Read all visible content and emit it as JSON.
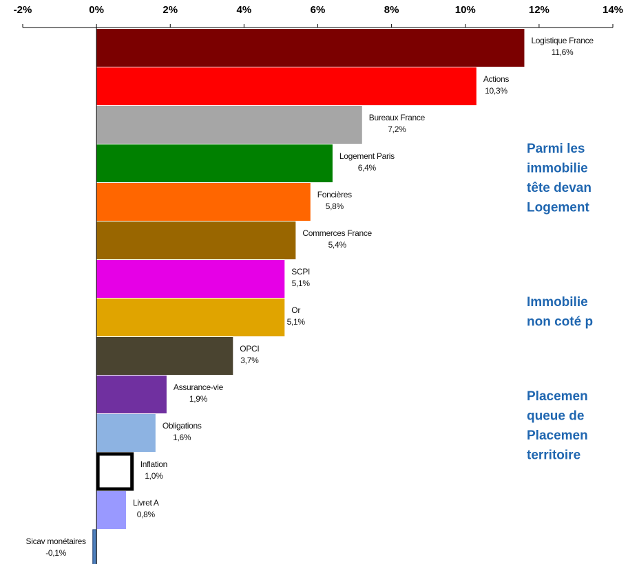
{
  "chart_data": {
    "type": "barh",
    "categories": [
      "Logistique France",
      "Actions",
      "Bureaux France",
      "Logement Paris",
      "Foncières",
      "Commerces France",
      "SCPI",
      "Or",
      "OPCI",
      "Assurance-vie",
      "Obligations",
      "Inflation",
      "Livret A",
      "Sicav monétaires"
    ],
    "values": [
      11.6,
      10.3,
      7.2,
      6.4,
      5.8,
      5.4,
      5.1,
      5.1,
      3.7,
      1.9,
      1.6,
      1.0,
      0.8,
      -0.1
    ],
    "value_labels": [
      "11,6%",
      "10,3%",
      "7,2%",
      "6,4%",
      "5,8%",
      "5,4%",
      "5,1%",
      "5,1%",
      "3,7%",
      "1,9%",
      "1,6%",
      "1,0%",
      "0,8%",
      "-0,1%"
    ],
    "colors": [
      "#7b0000",
      "#ff0000",
      "#a6a6a6",
      "#008000",
      "#ff6600",
      "#996600",
      "#e600e6",
      "#e0a400",
      "#4a4430",
      "#7030a0",
      "#8db3e2",
      "#ffffff",
      "#9999ff",
      "#4f81bd"
    ],
    "edge_colors": [
      null,
      null,
      null,
      null,
      null,
      null,
      null,
      null,
      null,
      null,
      null,
      "#000000",
      null,
      null
    ],
    "xlim": [
      -2,
      14
    ],
    "xticks": [
      {
        "value": -2,
        "label": "-2%"
      },
      {
        "value": 0,
        "label": "0%"
      },
      {
        "value": 2,
        "label": "2%"
      },
      {
        "value": 4,
        "label": "4%"
      },
      {
        "value": 6,
        "label": "6%"
      },
      {
        "value": 8,
        "label": "8%"
      },
      {
        "value": 10,
        "label": "10%"
      },
      {
        "value": 12,
        "label": "12%"
      },
      {
        "value": 14,
        "label": "14%"
      }
    ],
    "annotations": [
      [
        "Parmi les",
        "immobilie",
        "tête devan",
        "Logement"
      ],
      [
        "Immobilie",
        "non coté p"
      ],
      [
        "Placemen",
        "queue de",
        "Placemen",
        "territoire"
      ]
    ]
  }
}
